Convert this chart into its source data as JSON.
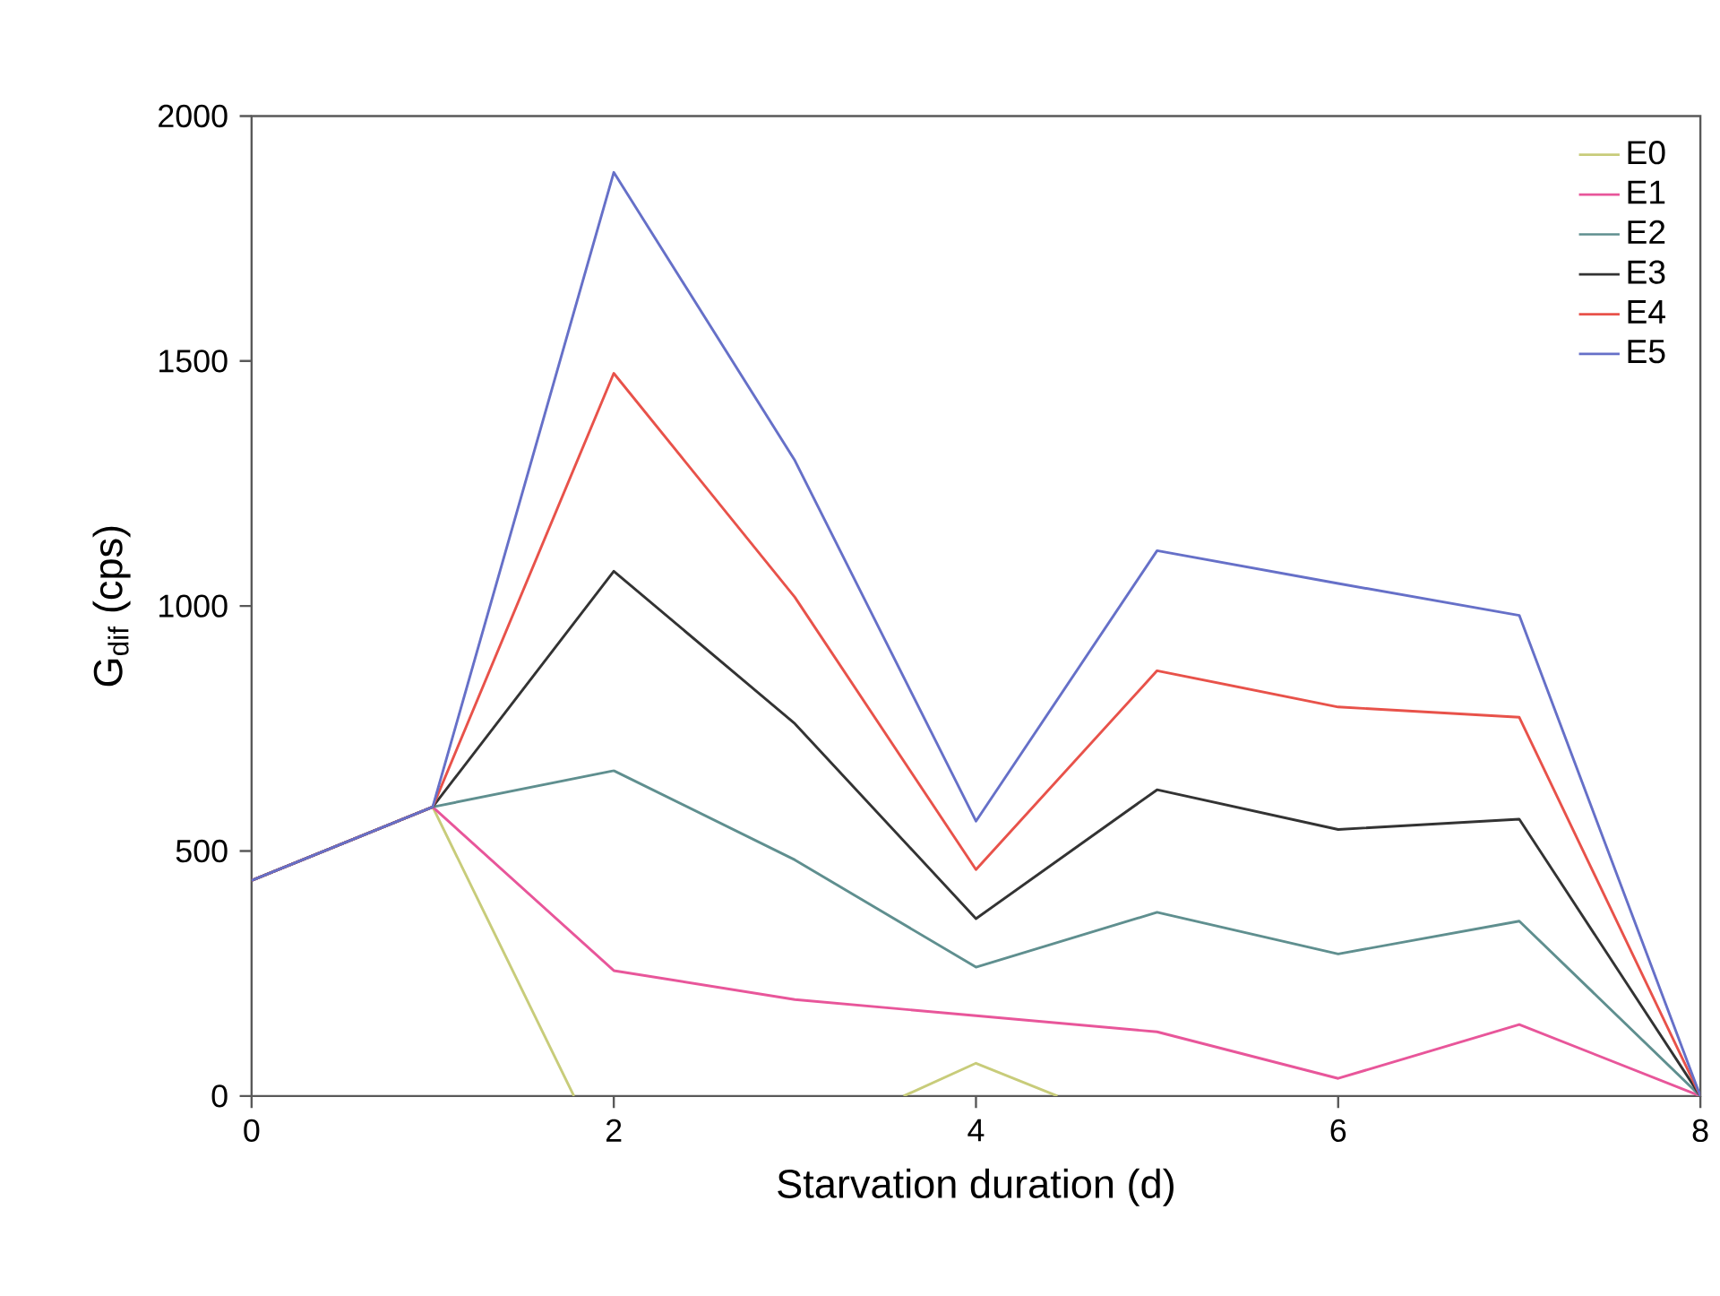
{
  "chart_data": {
    "type": "line",
    "xlabel": "Starvation duration (d)",
    "ylabel": "G$_{dif}$ (cps)",
    "x": [
      0,
      1,
      2,
      3,
      4,
      5,
      6,
      7,
      8
    ],
    "series": [
      {
        "name": "E0",
        "color": "#c8cc7a",
        "x": [
          0,
          1,
          1.78,
          2.7,
          3.6,
          4,
          4.45
        ],
        "values": [
          440,
          590,
          0,
          null,
          0,
          67,
          0
        ]
      },
      {
        "name": "E1",
        "color": "#e8569a",
        "values": [
          440,
          590,
          256,
          197,
          164,
          131,
          36,
          146,
          0
        ]
      },
      {
        "name": "E2",
        "color": "#5f8f8f",
        "values": [
          440,
          590,
          664,
          482,
          263,
          375,
          290,
          357,
          0
        ]
      },
      {
        "name": "E3",
        "color": "#333333",
        "values": [
          440,
          590,
          1071,
          760,
          362,
          625,
          544,
          565,
          0
        ]
      },
      {
        "name": "E4",
        "color": "#e8524a",
        "values": [
          440,
          590,
          1475,
          1018,
          462,
          868,
          794,
          773,
          0
        ]
      },
      {
        "name": "E5",
        "color": "#6670c8",
        "values": [
          440,
          590,
          1885,
          1297,
          561,
          1113,
          1046,
          981,
          0
        ]
      }
    ],
    "xlim": [
      0,
      8
    ],
    "ylim": [
      0,
      2000
    ],
    "xticks": [
      0,
      2,
      4,
      6,
      8
    ],
    "yticks": [
      0,
      500,
      1000,
      1500,
      2000
    ],
    "grid": false,
    "legend": "top right",
    "line_style": "solid"
  }
}
